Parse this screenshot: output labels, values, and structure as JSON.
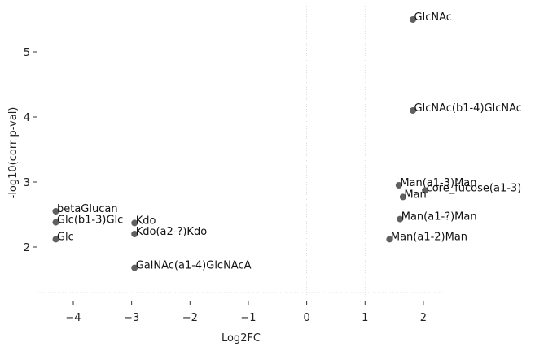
{
  "chart_data": {
    "type": "scatter",
    "xlabel": "Log2FC",
    "ylabel": "-log10(corr p-val)",
    "xlim": [
      -4.6,
      2.35
    ],
    "ylim": [
      1.2,
      5.7
    ],
    "xticks": [
      -4,
      -3,
      -2,
      -1,
      0,
      1,
      2
    ],
    "yticks": [
      2,
      3,
      4,
      5
    ],
    "grid_lines": {
      "x": [
        0,
        1
      ],
      "y": [
        1.3
      ]
    },
    "point_color": "#606060",
    "points": [
      {
        "x": 1.82,
        "y": 5.5,
        "label": "GlcNAc"
      },
      {
        "x": 1.82,
        "y": 4.1,
        "label": "GlcNAc(b1-4)GlcNAc"
      },
      {
        "x": 1.58,
        "y": 2.95,
        "label": "Man(a1-3)Man"
      },
      {
        "x": 2.03,
        "y": 2.87,
        "label": "core_fucose(a1-3)"
      },
      {
        "x": 1.65,
        "y": 2.77,
        "label": "Man"
      },
      {
        "x": 1.6,
        "y": 2.43,
        "label": "Man(a1-?)Man"
      },
      {
        "x": 1.42,
        "y": 2.12,
        "label": "Man(a1-2)Man"
      },
      {
        "x": -4.3,
        "y": 2.55,
        "label": "betaGlucan"
      },
      {
        "x": -4.3,
        "y": 2.38,
        "label": "Glc(b1-3)Glc"
      },
      {
        "x": -4.3,
        "y": 2.12,
        "label": "Glc"
      },
      {
        "x": -2.95,
        "y": 2.37,
        "label": "Kdo"
      },
      {
        "x": -2.95,
        "y": 2.2,
        "label": "Kdo(a2-?)Kdo"
      },
      {
        "x": -2.95,
        "y": 1.68,
        "label": "GalNAc(a1-4)GlcNAcA"
      }
    ]
  }
}
